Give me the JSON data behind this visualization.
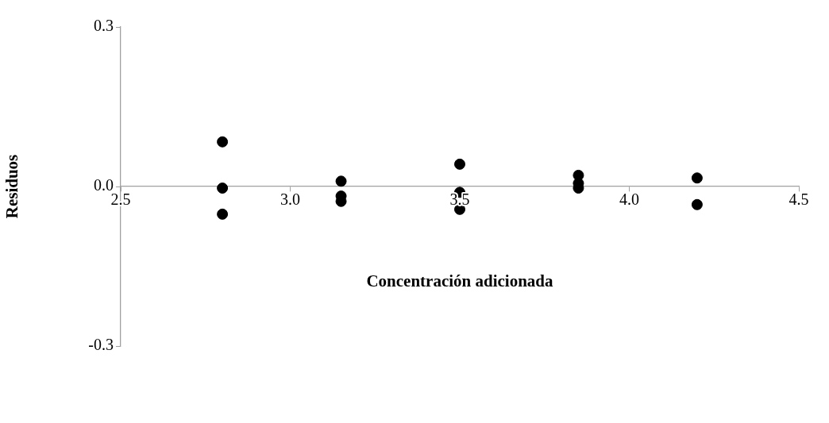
{
  "chart_data": {
    "type": "scatter",
    "xlabel": "Concentración adicionada",
    "ylabel": "Residuos",
    "xlim": [
      2.5,
      4.5
    ],
    "xticks": [
      {
        "value": 2.5,
        "label": "2.5"
      },
      {
        "value": 3,
        "label": "3.0"
      },
      {
        "value": 3.5,
        "label": "3.5"
      },
      {
        "value": 4,
        "label": "4.0"
      },
      {
        "value": 4.5,
        "label": "4.5"
      }
    ],
    "ylim": [
      -0.3,
      0.3
    ],
    "yticks": [
      {
        "value": -0.3,
        "label": "-0.3"
      },
      {
        "value": 0,
        "label": "0.0"
      },
      {
        "value": 0.3,
        "label": "0.3"
      }
    ],
    "grid": false,
    "legend": false,
    "marker": "circle",
    "series": [
      {
        "color": "#000000",
        "x": [
          2.8,
          2.8,
          2.8,
          3.15,
          3.15,
          3.15,
          3.5,
          3.5,
          3.5,
          3.85,
          3.85,
          3.85,
          4.2,
          4.2
        ],
        "values": [
          0.084,
          -0.003,
          -0.052,
          0.01,
          -0.018,
          -0.028,
          0.042,
          -0.011,
          -0.043,
          0.021,
          0.006,
          -0.003,
          0.016,
          -0.034
        ]
      }
    ]
  }
}
